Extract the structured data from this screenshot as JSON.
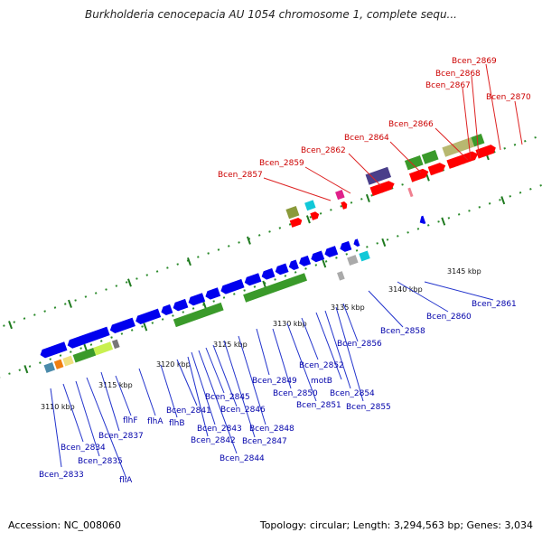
{
  "title": "Burkholderia cenocepacia AU 1054 chromosome 1, complete sequ...",
  "accession": "Accession: NC_008060",
  "summary": "Topology: circular; Length: 3,294,563 bp; Genes: 3,034",
  "scale_labels": [
    "3110 kbp",
    "3115 kbp",
    "3120 kbp",
    "3125 kbp",
    "3130 kbp",
    "3135 kbp",
    "3140 kbp",
    "3145 kbp"
  ],
  "upper_gene_labels": [
    "Bcen_2857",
    "Bcen_2859",
    "Bcen_2862",
    "Bcen_2864",
    "Bcen_2866",
    "Bcen_2867",
    "Bcen_2868",
    "Bcen_2869",
    "Bcen_2870"
  ],
  "lower_gene_labels": [
    "Bcen_2833",
    "Bcen_2834",
    "Bcen_2835",
    "fliA",
    "Bcen_2837",
    "flhF",
    "flhA",
    "flhB",
    "Bcen_2841",
    "Bcen_2842",
    "Bcen_2843",
    "Bcen_2844",
    "Bcen_2845",
    "Bcen_2846",
    "Bcen_2847",
    "Bcen_2848",
    "Bcen_2849",
    "Bcen_2850",
    "Bcen_2851",
    "Bcen_2852",
    "motB",
    "Bcen_2854",
    "Bcen_2855",
    "Bcen_2856",
    "Bcen_2858",
    "Bcen_2860",
    "Bcen_2861"
  ],
  "colors": {
    "upper_label": "#cc0000",
    "lower_label": "#0000aa",
    "forward_gene": "#ff0000",
    "reverse_gene": "#0000ee",
    "backbone": "#888888",
    "tick": "#228822",
    "cog_green": "#3a9a2a",
    "cog_olive": "#8a9a3a",
    "cog_purple": "#4a3f8a",
    "cog_cyan": "#11c8d8",
    "cog_magenta": "#e0208a",
    "cog_pink": "#f08090",
    "cog_khaki": "#b8b870",
    "cog_lime": "#c8f050",
    "cog_orange": "#f07f10",
    "cog_gray": "#aaaaaa"
  }
}
